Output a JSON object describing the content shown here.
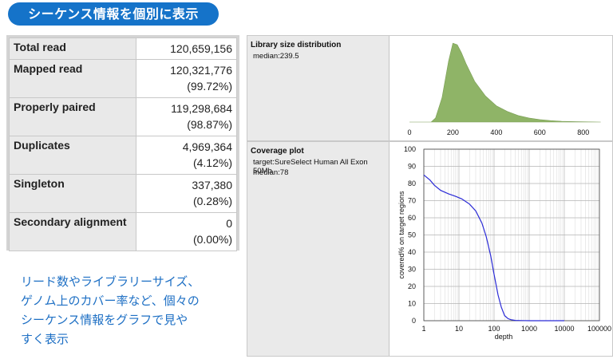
{
  "banner": {
    "title": "シーケンス情報を個別に表示"
  },
  "stats": {
    "rows": [
      {
        "label": "Total read",
        "value": "120,659,156",
        "percent": ""
      },
      {
        "label": "Mapped read",
        "value": "120,321,776",
        "percent": "(99.72%)"
      },
      {
        "label": "Properly paired",
        "value": "119,298,684",
        "percent": "(98.87%)"
      },
      {
        "label": "Duplicates",
        "value": "4,969,364",
        "percent": "(4.12%)"
      },
      {
        "label": "Singleton",
        "value": "337,380",
        "percent": "(0.28%)"
      },
      {
        "label": "Secondary alignment",
        "value": "0",
        "percent": "(0.00%)"
      }
    ]
  },
  "caption": {
    "lines": [
      "リード数やライブラリーサイズ、",
      "ゲノム上のカバー率など、個々の",
      "シーケンス情報をグラフで見や",
      "すく表示"
    ]
  },
  "library_panel": {
    "title": "Library size distribution",
    "line1": "median:239.5"
  },
  "coverage_panel": {
    "title": "Coverage plot",
    "line1": "target:SureSelect Human All Exon 50Mb",
    "line2": "median:78"
  },
  "chart_data": [
    {
      "type": "area",
      "title": "Library size distribution",
      "xlabel": "",
      "ylabel": "",
      "xlim": [
        0,
        900
      ],
      "x_ticks": [
        "0",
        "200",
        "400",
        "600",
        "800"
      ],
      "x": [
        0,
        100,
        120,
        150,
        180,
        200,
        220,
        239.5,
        260,
        300,
        350,
        400,
        450,
        500,
        550,
        600,
        650,
        700,
        750,
        800,
        880
      ],
      "y": [
        0,
        0,
        0.05,
        0.3,
        0.75,
        0.97,
        0.95,
        0.85,
        0.72,
        0.5,
        0.32,
        0.2,
        0.13,
        0.08,
        0.05,
        0.03,
        0.018,
        0.01,
        0.006,
        0.003,
        0
      ],
      "color": "#8fb467",
      "grid": false
    },
    {
      "type": "line",
      "title": "Coverage plot",
      "xlabel": "depth",
      "ylabel": "covered% on target regions",
      "x_scale": "log",
      "xlim": [
        1,
        100000
      ],
      "ylim": [
        0,
        100
      ],
      "x_ticks": [
        "1",
        "10",
        "100",
        "1000",
        "10000",
        "100000"
      ],
      "y_ticks": [
        "0",
        "10",
        "20",
        "30",
        "40",
        "50",
        "60",
        "70",
        "80",
        "90",
        "100"
      ],
      "x": [
        1,
        1.5,
        2,
        3,
        5,
        8,
        12,
        20,
        30,
        45,
        60,
        80,
        100,
        130,
        160,
        200,
        250,
        300,
        400,
        600,
        1000,
        10000
      ],
      "y": [
        85,
        82,
        79,
        76,
        74,
        72.5,
        71,
        68,
        64,
        57,
        49,
        38,
        27,
        15,
        8,
        3,
        1.2,
        0.6,
        0.2,
        0.1,
        0,
        0
      ],
      "color": "#2b2bd6",
      "grid": true
    }
  ]
}
